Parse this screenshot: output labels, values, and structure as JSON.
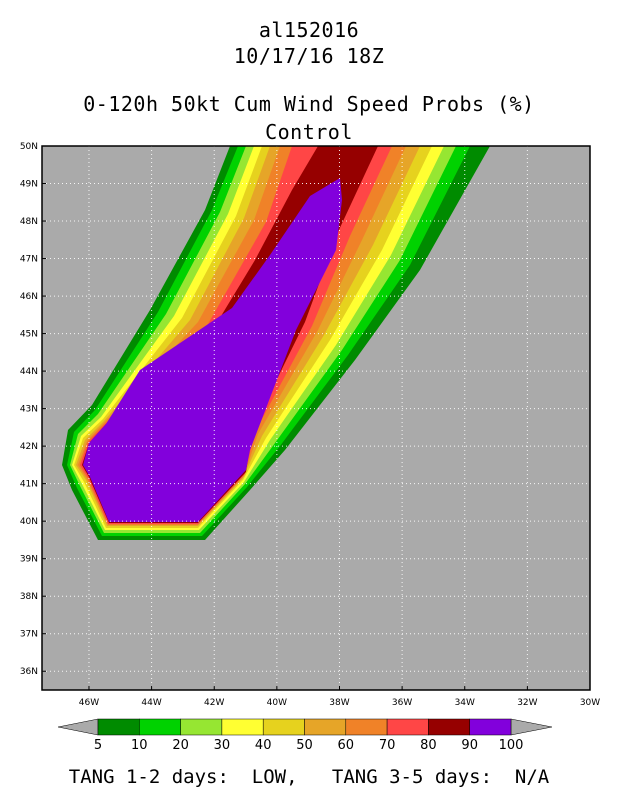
{
  "header": {
    "storm_id": "al152016",
    "datetime": "10/17/16 18Z",
    "product": "0-120h 50kt Cum Wind Speed Probs (%)",
    "member": "Control"
  },
  "map": {
    "background_color": "#aaaaaa",
    "lat_labels": [
      "50N",
      "49N",
      "48N",
      "47N",
      "46N",
      "45N",
      "44N",
      "43N",
      "42N",
      "41N",
      "40N",
      "39N",
      "38N",
      "37N",
      "36N"
    ],
    "lon_labels": [
      "46W",
      "44W",
      "42W",
      "40W",
      "38W",
      "36W",
      "34W",
      "32W",
      "30W"
    ],
    "grid": "dotted"
  },
  "colorbar": {
    "labels": [
      "5",
      "10",
      "20",
      "30",
      "40",
      "50",
      "60",
      "70",
      "80",
      "90",
      "100"
    ],
    "colors": [
      "#008b00",
      "#00d200",
      "#96e632",
      "#ffff32",
      "#e6d21e",
      "#e6a528",
      "#f08228",
      "#ff4646",
      "#960000",
      "#8200dc"
    ]
  },
  "footer": {
    "text": "TANG 1-2 days:  LOW,   TANG 3-5 days:  N/A"
  }
}
